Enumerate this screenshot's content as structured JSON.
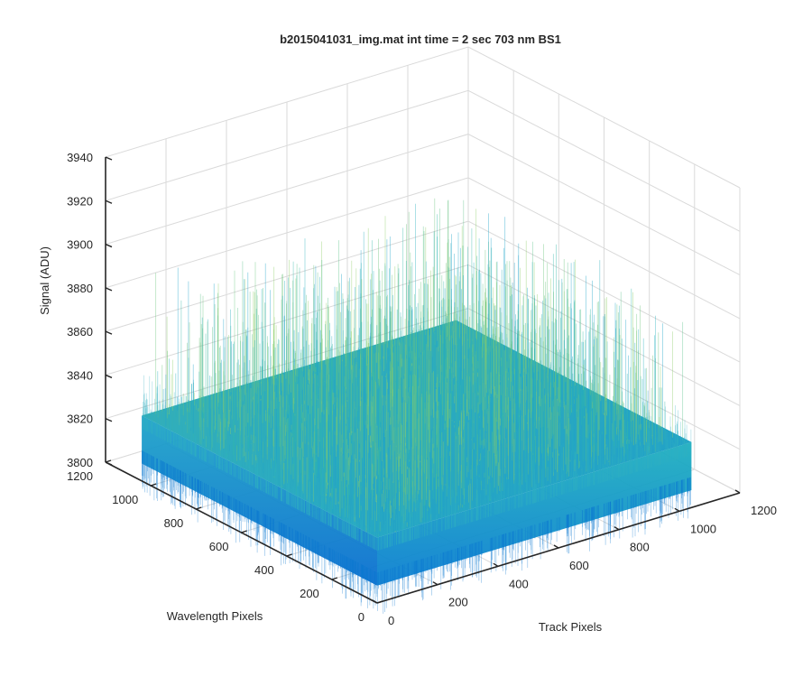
{
  "chart_data": {
    "type": "surface",
    "title": "b2015041031_img.mat int time = 2 sec  703 nm BS1",
    "xlabel": "Track Pixels",
    "ylabel": "Wavelength Pixels",
    "zlabel": "Signal (ADU)",
    "xlim": [
      0,
      1200
    ],
    "ylim": [
      0,
      1200
    ],
    "zlim": [
      3800,
      3940
    ],
    "xticks": [
      "0",
      "200",
      "400",
      "600",
      "800",
      "1000",
      "1200"
    ],
    "yticks": [
      "0",
      "200",
      "400",
      "600",
      "800",
      "1000",
      "1200"
    ],
    "zticks": [
      "3800",
      "3820",
      "3840",
      "3860",
      "3880",
      "3900",
      "3920",
      "3940"
    ],
    "surface_extent": {
      "x": [
        0,
        1040
      ],
      "y": [
        0,
        1040
      ]
    },
    "signal_mean": 3830,
    "signal_range": [
      3808,
      3895
    ],
    "noise_level": "high",
    "grid": true,
    "colormap": "parula",
    "colors": {
      "low": "#0a7ccf",
      "mid": "#1fa4c9",
      "high": "#8fcf6a"
    }
  }
}
